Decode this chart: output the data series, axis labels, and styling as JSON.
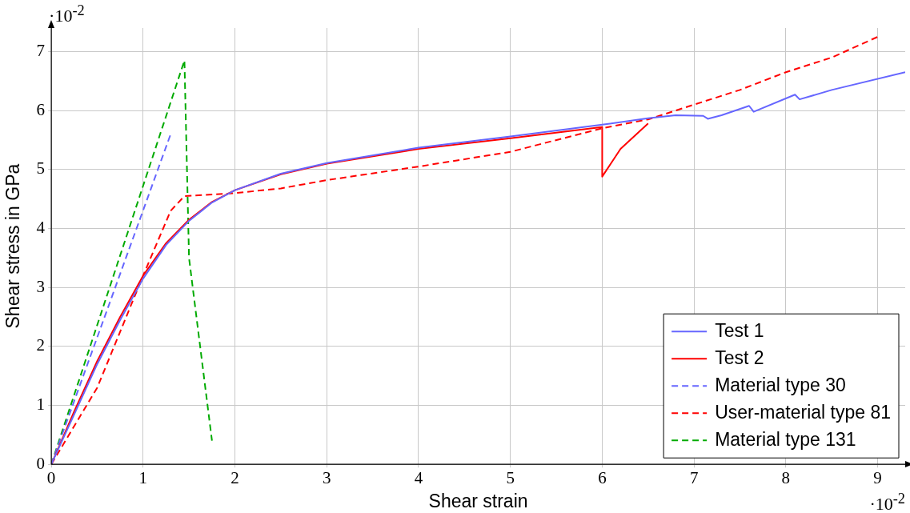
{
  "chart_data": {
    "type": "line",
    "xlabel": "Shear strain",
    "ylabel": "Shear stress in GPa",
    "xlim": [
      0,
      9.3
    ],
    "ylim": [
      0,
      7.4
    ],
    "xticks": [
      0,
      1,
      2,
      3,
      4,
      5,
      6,
      7,
      8,
      9
    ],
    "yticks": [
      0,
      1,
      2,
      3,
      4,
      5,
      6,
      7
    ],
    "grid": true,
    "legend": "bottom right",
    "marker": "none",
    "annotations": [
      "·10$^{-2}$",
      "·10$^{-2}$"
    ],
    "series": [
      {
        "name": "Test 1",
        "color": "#6666ff",
        "line_style": "solid",
        "x": [
          0,
          0.25,
          0.5,
          0.75,
          1,
          1.25,
          1.5,
          1.75,
          2,
          2.5,
          3,
          4,
          5,
          6,
          6.5,
          6.8,
          7.1,
          7.15,
          7.3,
          7.6,
          7.65,
          8.1,
          8.15,
          8.5,
          9.3
        ],
        "values": [
          0,
          0.85,
          1.7,
          2.45,
          3.15,
          3.72,
          4.13,
          4.44,
          4.65,
          4.93,
          5.11,
          5.37,
          5.56,
          5.76,
          5.87,
          5.92,
          5.91,
          5.86,
          5.92,
          6.08,
          5.98,
          6.27,
          6.19,
          6.35,
          6.65
        ]
      },
      {
        "name": "Test 2",
        "color": "#ff0000",
        "line_style": "solid",
        "x": [
          0,
          0.25,
          0.5,
          0.75,
          1,
          1.25,
          1.5,
          1.75,
          2,
          2.5,
          3,
          4,
          5,
          6,
          6,
          6.2,
          6.5
        ],
        "values": [
          0,
          0.9,
          1.75,
          2.5,
          3.2,
          3.75,
          4.15,
          4.45,
          4.65,
          4.92,
          5.1,
          5.35,
          5.53,
          5.72,
          4.88,
          5.35,
          5.78
        ]
      },
      {
        "name": "Material type 30",
        "color": "#6666ff",
        "line_style": "dashed",
        "x": [
          0,
          1.3
        ],
        "values": [
          0,
          5.6
        ]
      },
      {
        "name": "User-material type 81",
        "color": "#ff0000",
        "line_style": "dashed",
        "x": [
          0,
          0.5,
          1,
          1.3,
          1.45,
          2,
          2.5,
          3,
          4,
          5,
          6,
          6.5,
          7,
          7.5,
          8,
          8.5,
          9
        ],
        "values": [
          0,
          1.3,
          3.2,
          4.3,
          4.55,
          4.6,
          4.68,
          4.82,
          5.05,
          5.3,
          5.7,
          5.85,
          6.1,
          6.35,
          6.65,
          6.9,
          7.25
        ]
      },
      {
        "name": "Material type 131",
        "color": "#00aa00",
        "line_style": "dashed",
        "x": [
          0,
          1.45,
          1.5,
          1.75
        ],
        "values": [
          0,
          6.85,
          3.5,
          0.4
        ]
      }
    ]
  }
}
